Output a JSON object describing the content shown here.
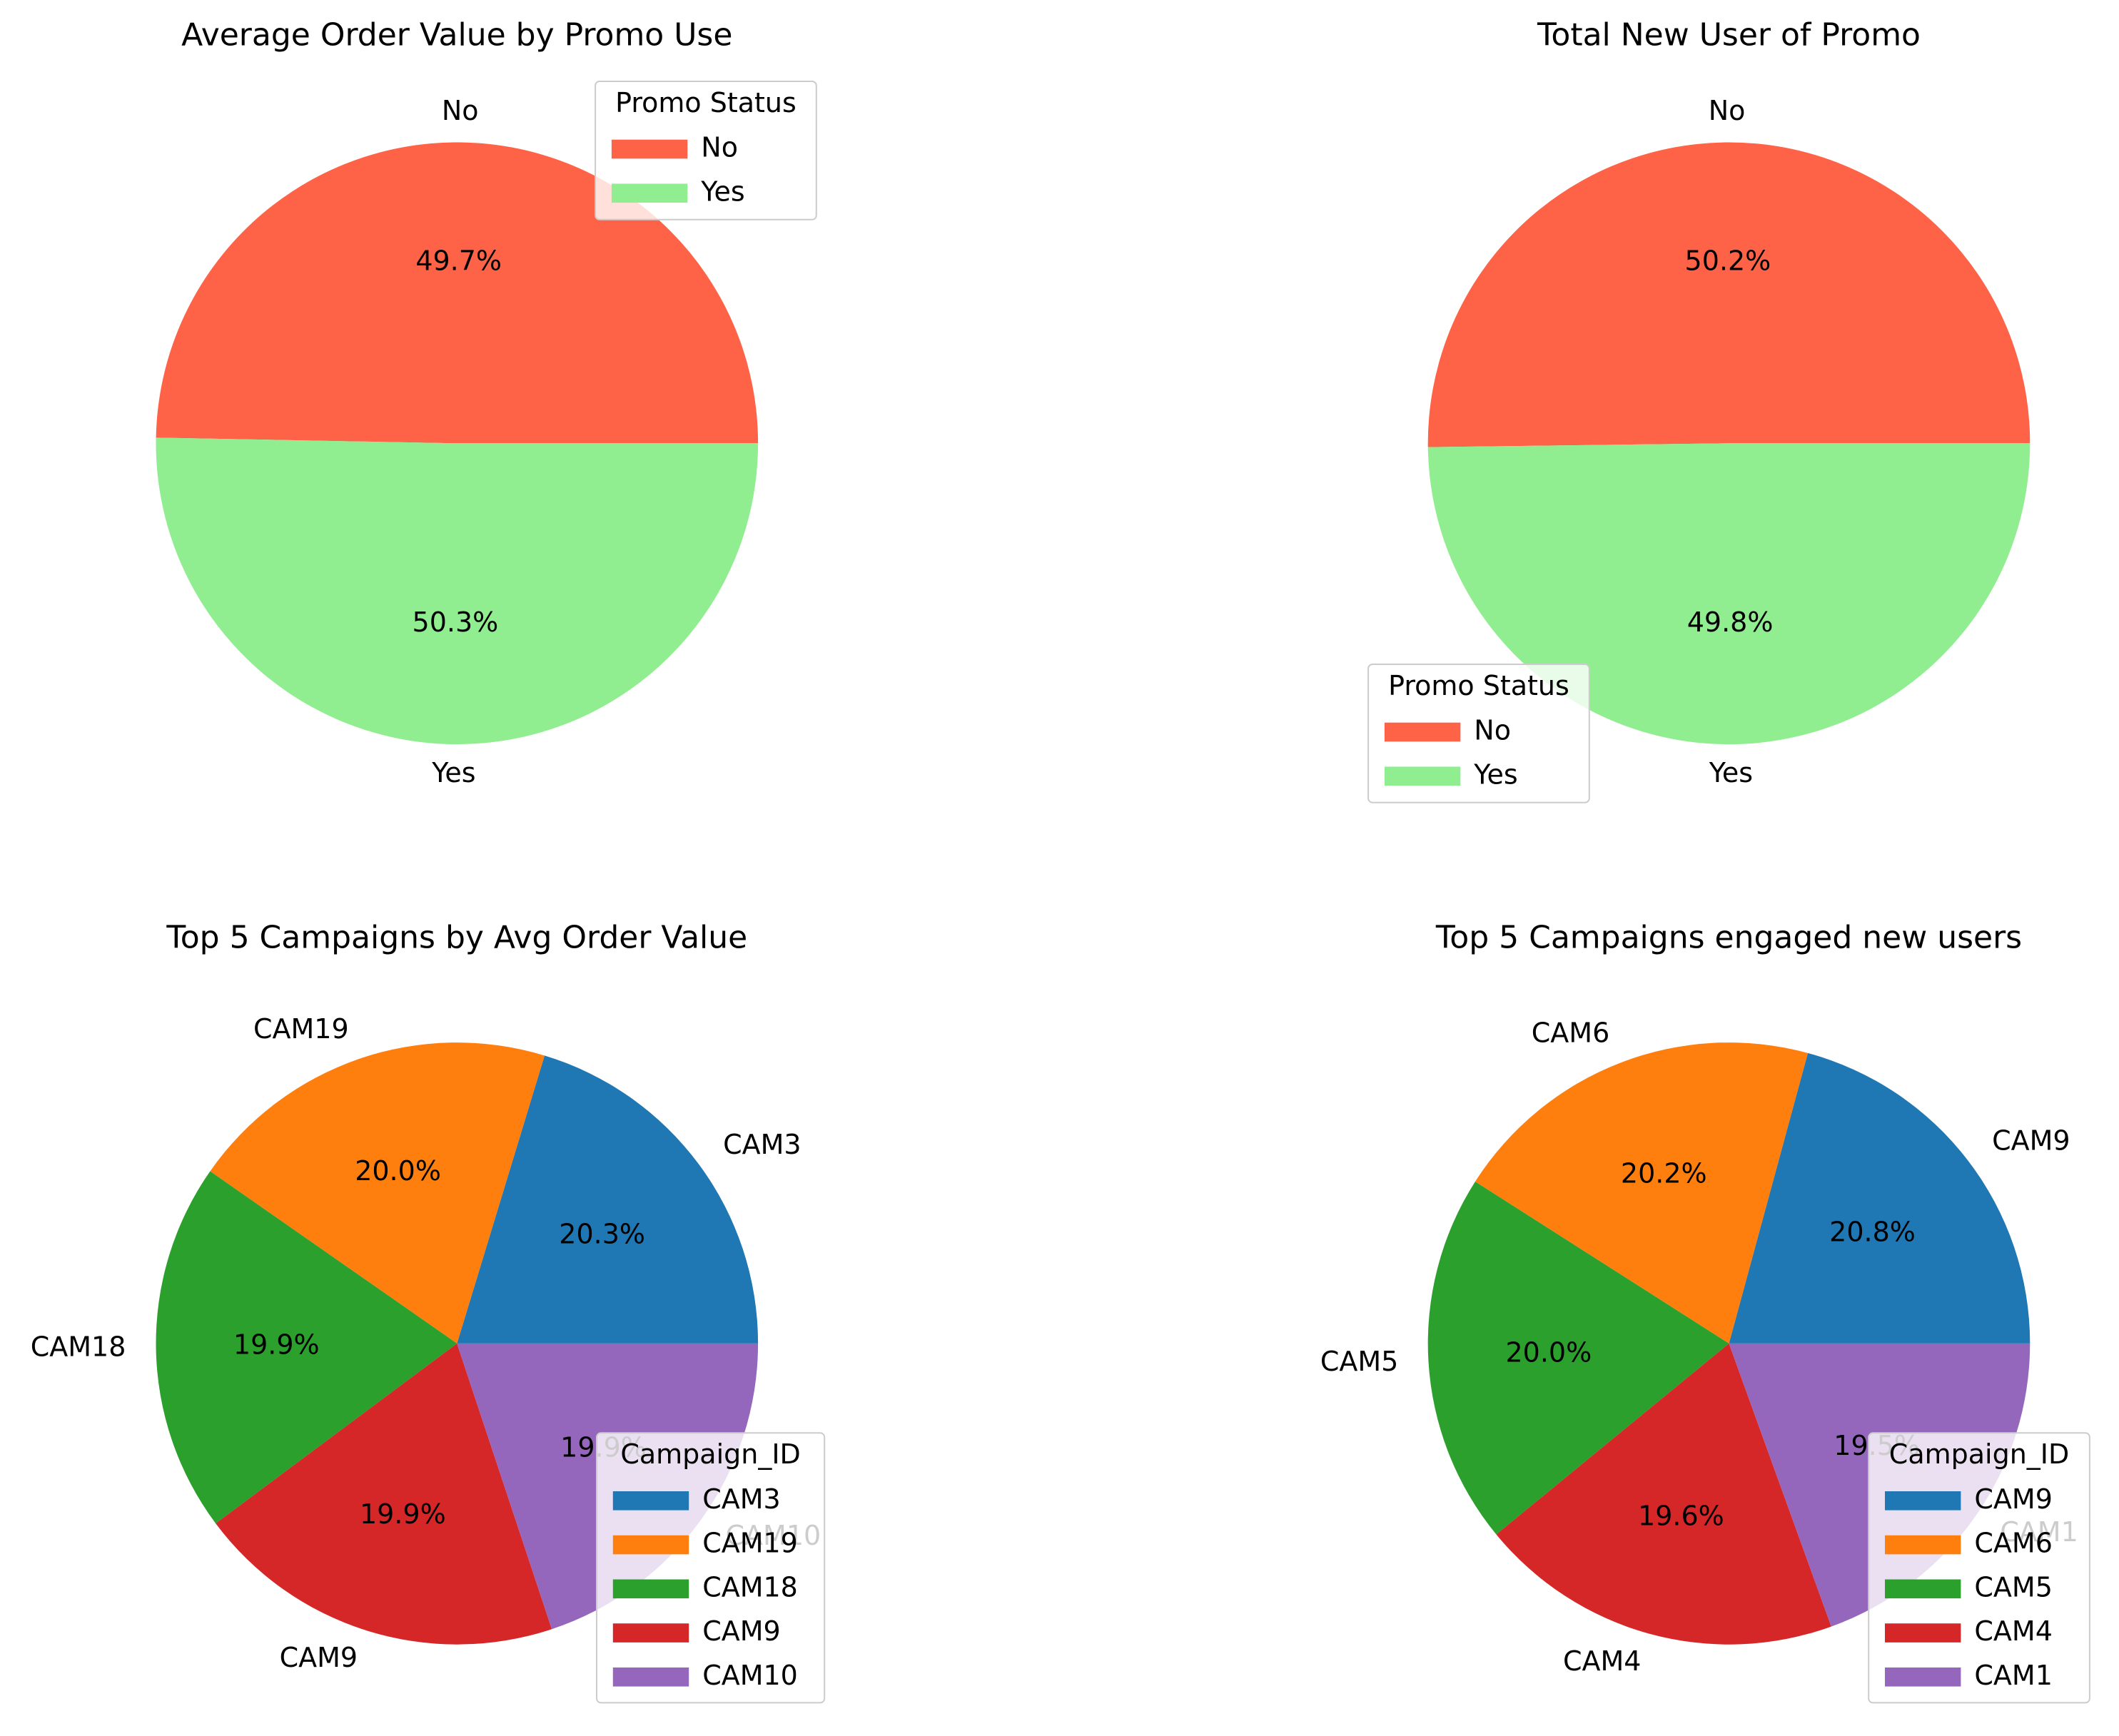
{
  "chart_data": [
    {
      "type": "pie",
      "title": "Average Order Value by Promo Use",
      "categories": [
        "No",
        "Yes"
      ],
      "values": [
        49.7,
        50.3
      ],
      "percent_labels": [
        "49.7%",
        "50.3%"
      ],
      "colors": [
        "#ff6347",
        "#90ee90"
      ],
      "legend": {
        "title": "Promo Status",
        "placement": "upper right"
      }
    },
    {
      "type": "pie",
      "title": "Total New User of Promo",
      "categories": [
        "No",
        "Yes"
      ],
      "values": [
        50.2,
        49.8
      ],
      "percent_labels": [
        "50.2%",
        "49.8%"
      ],
      "colors": [
        "#ff6347",
        "#90ee90"
      ],
      "legend": {
        "title": "Promo Status",
        "placement": "lower left"
      }
    },
    {
      "type": "pie",
      "title": "Top 5 Campaigns by Avg Order Value",
      "categories": [
        "CAM3",
        "CAM19",
        "CAM18",
        "CAM9",
        "CAM10"
      ],
      "values": [
        20.3,
        20.0,
        19.9,
        19.9,
        19.9
      ],
      "percent_labels": [
        "20.3%",
        "20.0%",
        "19.9%",
        "19.9%",
        "19.9%"
      ],
      "colors": [
        "#1f77b4",
        "#ff7f0e",
        "#2ca02c",
        "#d62728",
        "#9467bd"
      ],
      "legend": {
        "title": "Campaign_ID",
        "placement": "lower right"
      }
    },
    {
      "type": "pie",
      "title": "Top 5 Campaigns engaged new users",
      "categories": [
        "CAM9",
        "CAM6",
        "CAM5",
        "CAM4",
        "CAM1"
      ],
      "values": [
        20.8,
        20.2,
        20.0,
        19.6,
        19.5
      ],
      "percent_labels": [
        "20.8%",
        "20.2%",
        "20.0%",
        "19.6%",
        "19.5%"
      ],
      "colors": [
        "#1f77b4",
        "#ff7f0e",
        "#2ca02c",
        "#d62728",
        "#9467bd"
      ],
      "legend": {
        "title": "Campaign_ID",
        "placement": "lower right"
      }
    }
  ]
}
